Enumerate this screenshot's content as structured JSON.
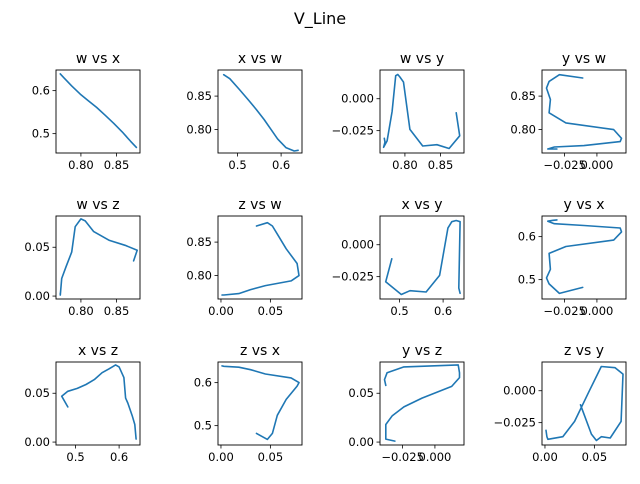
{
  "figure": {
    "title": "V_Line",
    "line_color": "#1f77b4"
  },
  "chart_data": [
    {
      "type": "line",
      "title": "w vs x",
      "xlim": [
        0.765,
        0.883
      ],
      "ylim": [
        0.455,
        0.648
      ],
      "xticks": [
        {
          "v": 0.8,
          "label": "0.80"
        },
        {
          "v": 0.85,
          "label": "0.85"
        }
      ],
      "yticks": [
        {
          "v": 0.5,
          "label": "0.5"
        },
        {
          "v": 0.6,
          "label": "0.6"
        }
      ],
      "x": [
        0.771,
        0.776,
        0.787,
        0.799,
        0.81,
        0.822,
        0.834,
        0.846,
        0.858,
        0.87,
        0.878
      ],
      "y": [
        0.639,
        0.63,
        0.611,
        0.592,
        0.577,
        0.561,
        0.543,
        0.524,
        0.504,
        0.482,
        0.468
      ]
    },
    {
      "type": "line",
      "title": "x vs w",
      "xlim": [
        0.455,
        0.648
      ],
      "ylim": [
        0.765,
        0.889
      ],
      "xticks": [
        {
          "v": 0.5,
          "label": "0.5"
        },
        {
          "v": 0.6,
          "label": "0.6"
        }
      ],
      "yticks": [
        {
          "v": 0.8,
          "label": "0.80"
        },
        {
          "v": 0.85,
          "label": "0.85"
        }
      ],
      "x": [
        0.468,
        0.482,
        0.504,
        0.524,
        0.543,
        0.561,
        0.577,
        0.592,
        0.611,
        0.63,
        0.639
      ],
      "y": [
        0.882,
        0.876,
        0.86,
        0.845,
        0.83,
        0.815,
        0.8,
        0.786,
        0.773,
        0.768,
        0.769
      ],
      "x_rev": true
    },
    {
      "type": "line",
      "title": "w vs y",
      "xlim": [
        0.765,
        0.883
      ],
      "ylim": [
        -0.0425,
        0.0225
      ],
      "xticks": [
        {
          "v": 0.8,
          "label": "0.80"
        },
        {
          "v": 0.85,
          "label": "0.85"
        }
      ],
      "yticks": [
        {
          "v": -0.025,
          "label": "−0.025"
        },
        {
          "v": 0.0,
          "label": "0.000"
        }
      ],
      "x": [
        0.771,
        0.772,
        0.77,
        0.775,
        0.782,
        0.787,
        0.79,
        0.793,
        0.798,
        0.807,
        0.825,
        0.845,
        0.862,
        0.877,
        0.872
      ],
      "y": [
        -0.031,
        -0.034,
        -0.038,
        -0.033,
        -0.01,
        0.018,
        0.019,
        0.017,
        0.013,
        -0.024,
        -0.037,
        -0.036,
        -0.039,
        -0.029,
        -0.011
      ]
    },
    {
      "type": "line",
      "title": "y vs w",
      "xlim": [
        -0.0425,
        0.0225
      ],
      "ylim": [
        0.765,
        0.889
      ],
      "xticks": [
        {
          "v": -0.025,
          "label": "−0.025"
        },
        {
          "v": 0.0,
          "label": "0.000"
        }
      ],
      "yticks": [
        {
          "v": 0.8,
          "label": "0.80"
        },
        {
          "v": 0.85,
          "label": "0.85"
        }
      ],
      "x": [
        -0.011,
        -0.029,
        -0.037,
        -0.039,
        -0.036,
        -0.037,
        -0.024,
        0.013,
        0.019,
        0.018,
        -0.01,
        -0.033,
        -0.038,
        -0.034,
        -0.031
      ],
      "y": [
        0.877,
        0.882,
        0.872,
        0.862,
        0.845,
        0.825,
        0.81,
        0.8,
        0.787,
        0.782,
        0.776,
        0.774,
        0.771,
        0.771,
        0.771
      ]
    },
    {
      "type": "line",
      "title": "w vs z",
      "xlim": [
        0.765,
        0.883
      ],
      "ylim": [
        -0.003,
        0.082
      ],
      "xticks": [
        {
          "v": 0.8,
          "label": "0.80"
        },
        {
          "v": 0.85,
          "label": "0.85"
        }
      ],
      "yticks": [
        {
          "v": 0.0,
          "label": "0.00"
        },
        {
          "v": 0.05,
          "label": "0.05"
        }
      ],
      "x": [
        0.771,
        0.771,
        0.773,
        0.779,
        0.787,
        0.792,
        0.8,
        0.806,
        0.818,
        0.84,
        0.862,
        0.879,
        0.874
      ],
      "y": [
        0.003,
        0.001,
        0.018,
        0.03,
        0.045,
        0.071,
        0.079,
        0.077,
        0.066,
        0.057,
        0.052,
        0.047,
        0.036
      ]
    },
    {
      "type": "line",
      "title": "z vs w",
      "xlim": [
        -0.003,
        0.082
      ],
      "ylim": [
        0.765,
        0.889
      ],
      "xticks": [
        {
          "v": 0.0,
          "label": "0.00"
        },
        {
          "v": 0.05,
          "label": "0.05"
        }
      ],
      "yticks": [
        {
          "v": 0.8,
          "label": "0.80"
        },
        {
          "v": 0.85,
          "label": "0.85"
        }
      ],
      "x": [
        0.036,
        0.047,
        0.052,
        0.057,
        0.066,
        0.077,
        0.079,
        0.071,
        0.045,
        0.03,
        0.018,
        0.003,
        0.001
      ],
      "y": [
        0.874,
        0.879,
        0.874,
        0.862,
        0.84,
        0.818,
        0.8,
        0.792,
        0.785,
        0.779,
        0.773,
        0.771,
        0.771
      ]
    },
    {
      "type": "line",
      "title": "x vs y",
      "xlim": [
        0.455,
        0.648
      ],
      "ylim": [
        -0.0425,
        0.0225
      ],
      "xticks": [
        {
          "v": 0.5,
          "label": "0.5"
        },
        {
          "v": 0.6,
          "label": "0.6"
        }
      ],
      "yticks": [
        {
          "v": -0.025,
          "label": "−0.025"
        },
        {
          "v": 0.0,
          "label": "0.000"
        }
      ],
      "x": [
        0.482,
        0.468,
        0.504,
        0.524,
        0.561,
        0.592,
        0.611,
        0.62,
        0.63,
        0.639,
        0.636,
        0.639
      ],
      "y": [
        -0.011,
        -0.029,
        -0.039,
        -0.036,
        -0.037,
        -0.024,
        0.013,
        0.018,
        0.019,
        0.018,
        -0.034,
        -0.038
      ]
    },
    {
      "type": "line",
      "title": "y vs x",
      "xlim": [
        -0.0425,
        0.0225
      ],
      "ylim": [
        0.455,
        0.648
      ],
      "xticks": [
        {
          "v": -0.025,
          "label": "−0.025"
        },
        {
          "v": 0.0,
          "label": "0.000"
        }
      ],
      "yticks": [
        {
          "v": 0.5,
          "label": "0.5"
        },
        {
          "v": 0.6,
          "label": "0.6"
        }
      ],
      "x": [
        -0.011,
        -0.029,
        -0.037,
        -0.039,
        -0.036,
        -0.037,
        -0.024,
        0.013,
        0.019,
        0.018,
        -0.01,
        -0.033,
        -0.038,
        -0.034,
        -0.031
      ],
      "y": [
        0.482,
        0.468,
        0.49,
        0.504,
        0.524,
        0.561,
        0.577,
        0.592,
        0.611,
        0.62,
        0.626,
        0.63,
        0.636,
        0.638,
        0.639
      ]
    },
    {
      "type": "line",
      "title": "x vs z",
      "xlim": [
        0.455,
        0.648
      ],
      "ylim": [
        -0.003,
        0.082
      ],
      "xticks": [
        {
          "v": 0.5,
          "label": "0.5"
        },
        {
          "v": 0.6,
          "label": "0.6"
        }
      ],
      "yticks": [
        {
          "v": 0.0,
          "label": "0.00"
        },
        {
          "v": 0.05,
          "label": "0.05"
        }
      ],
      "x": [
        0.482,
        0.468,
        0.482,
        0.504,
        0.524,
        0.543,
        0.561,
        0.577,
        0.592,
        0.6,
        0.611,
        0.615,
        0.62,
        0.63,
        0.636,
        0.639
      ],
      "y": [
        0.036,
        0.047,
        0.052,
        0.055,
        0.059,
        0.064,
        0.071,
        0.075,
        0.079,
        0.077,
        0.066,
        0.045,
        0.04,
        0.027,
        0.018,
        0.003
      ]
    },
    {
      "type": "line",
      "title": "z vs x",
      "xlim": [
        -0.003,
        0.082
      ],
      "ylim": [
        0.455,
        0.648
      ],
      "xticks": [
        {
          "v": 0.0,
          "label": "0.00"
        },
        {
          "v": 0.05,
          "label": "0.05"
        }
      ],
      "yticks": [
        {
          "v": 0.5,
          "label": "0.5"
        },
        {
          "v": 0.6,
          "label": "0.6"
        }
      ],
      "x": [
        0.036,
        0.047,
        0.052,
        0.057,
        0.066,
        0.077,
        0.079,
        0.071,
        0.045,
        0.03,
        0.018,
        0.003,
        0.001
      ],
      "y": [
        0.482,
        0.468,
        0.482,
        0.524,
        0.561,
        0.592,
        0.6,
        0.611,
        0.62,
        0.63,
        0.636,
        0.638,
        0.639
      ]
    },
    {
      "type": "line",
      "title": "y vs z",
      "xlim": [
        -0.0425,
        0.0225
      ],
      "ylim": [
        -0.003,
        0.082
      ],
      "xticks": [
        {
          "v": -0.025,
          "label": "−0.025"
        },
        {
          "v": 0.0,
          "label": "0.000"
        }
      ],
      "yticks": [
        {
          "v": 0.0,
          "label": "0.00"
        },
        {
          "v": 0.05,
          "label": "0.05"
        }
      ],
      "x": [
        -0.031,
        -0.038,
        -0.038,
        -0.033,
        -0.024,
        -0.01,
        0.013,
        0.019,
        0.019,
        0.018,
        -0.024,
        -0.037,
        -0.039,
        -0.038
      ],
      "y": [
        0.001,
        0.003,
        0.018,
        0.027,
        0.036,
        0.045,
        0.057,
        0.066,
        0.071,
        0.079,
        0.077,
        0.071,
        0.064,
        0.058
      ]
    },
    {
      "type": "line",
      "title": "z vs y",
      "xlim": [
        -0.003,
        0.082
      ],
      "ylim": [
        -0.0425,
        0.0225
      ],
      "xticks": [
        {
          "v": 0.0,
          "label": "0.00"
        },
        {
          "v": 0.05,
          "label": "0.05"
        }
      ],
      "yticks": [
        {
          "v": -0.025,
          "label": "−0.025"
        },
        {
          "v": 0.0,
          "label": "0.000"
        }
      ],
      "x": [
        0.001,
        0.002,
        0.003,
        0.018,
        0.03,
        0.045,
        0.057,
        0.071,
        0.079,
        0.077,
        0.066,
        0.057,
        0.052,
        0.047,
        0.036
      ],
      "y": [
        -0.031,
        -0.036,
        -0.038,
        -0.036,
        -0.024,
        0.0,
        0.019,
        0.018,
        0.013,
        -0.024,
        -0.037,
        -0.036,
        -0.039,
        -0.034,
        -0.011
      ]
    }
  ]
}
